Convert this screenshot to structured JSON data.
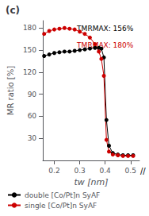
{
  "chart_data": {
    "type": "line",
    "title": "(c)",
    "xlabel": "tw [nm]",
    "ylabel": "MR ratio [%]",
    "x": [
      0.16,
      0.18,
      0.2,
      0.22,
      0.24,
      0.26,
      0.28,
      0.3,
      0.32,
      0.34,
      0.36,
      0.375,
      0.385,
      0.395,
      0.405,
      0.415,
      0.43,
      0.45,
      0.47,
      0.49,
      0.51
    ],
    "series": [
      {
        "name": "double [Co/Pt]n SyAF",
        "color": "#000000",
        "marker": "circle",
        "values": [
          142,
          144,
          146,
          147,
          148,
          148,
          149,
          150,
          151,
          152,
          153,
          153,
          152,
          140,
          55,
          20,
          10,
          8,
          7,
          7,
          7
        ]
      },
      {
        "name": "single [Co/Pt]n SyAF",
        "color": "#cc0000",
        "marker": "circle",
        "values": [
          172,
          176,
          178,
          179,
          180,
          179,
          178,
          175,
          172,
          167,
          158,
          148,
          138,
          115,
          28,
          12,
          8,
          7,
          6,
          6,
          6
        ]
      }
    ],
    "xlim": [
      0.155,
      0.535
    ],
    "ylim": [
      0,
      190
    ],
    "xticks": [
      0.2,
      0.3,
      0.4,
      0.5
    ],
    "yticks": [
      30,
      60,
      90,
      120,
      150,
      180
    ],
    "grid": false,
    "legend": "lower left",
    "annotations": [
      {
        "text": "TMRMAX: 156%",
        "color": "#000000"
      },
      {
        "text": "TMRMAX: 180%",
        "color": "#cc0000"
      },
      {
        "text": "//"
      }
    ]
  }
}
